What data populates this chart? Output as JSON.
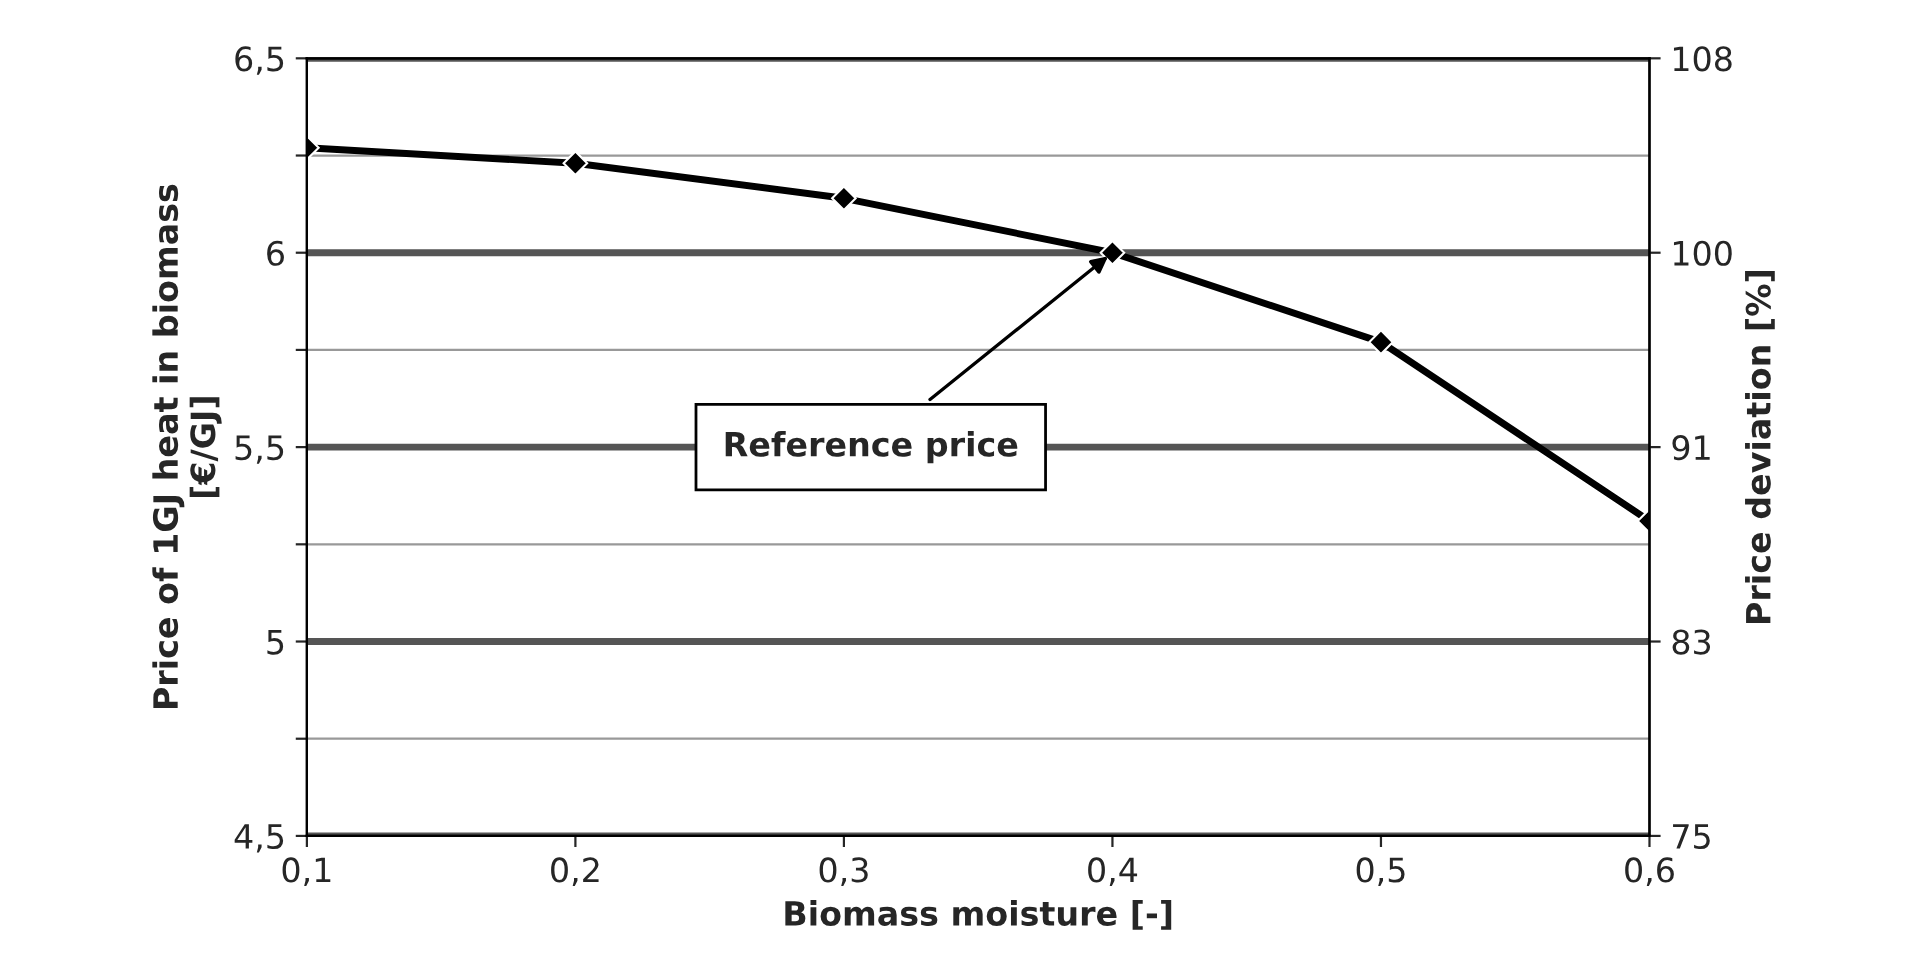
{
  "chart_data": {
    "type": "line",
    "x": [
      0.1,
      0.2,
      0.3,
      0.4,
      0.5,
      0.6
    ],
    "series": [
      {
        "color": "#000000",
        "values": [
          6.27,
          6.23,
          6.14,
          6.0,
          5.77,
          5.31
        ]
      }
    ],
    "marker": "diamond",
    "line_style": "solid",
    "xlabel": "Biomass moisture [-]",
    "ylabel": "Price of 1GJ heat in biomass\n[€/GJ]",
    "y2label": "Price deviation [%]",
    "xlim": [
      0.1,
      0.6
    ],
    "xticks": [
      {
        "value": 0.1,
        "label": "0,1"
      },
      {
        "value": 0.2,
        "label": "0,2"
      },
      {
        "value": 0.3,
        "label": "0,3"
      },
      {
        "value": 0.4,
        "label": "0,4"
      },
      {
        "value": 0.5,
        "label": "0,5"
      },
      {
        "value": 0.6,
        "label": "0,6"
      }
    ],
    "ylim": [
      4.5,
      6.5
    ],
    "yticks": [
      {
        "value": 4.5,
        "label": "4,5"
      },
      {
        "value": 4.75,
        "label": null
      },
      {
        "value": 5,
        "label": "5"
      },
      {
        "value": 5.25,
        "label": null
      },
      {
        "value": 5.5,
        "label": "5,5"
      },
      {
        "value": 5.75,
        "label": null
      },
      {
        "value": 6,
        "label": "6"
      },
      {
        "value": 6.25,
        "label": null
      },
      {
        "value": 6.5,
        "label": "6,5"
      }
    ],
    "y2lim": [
      75,
      108
    ],
    "y2ticks": [
      75,
      {
        "value": 83.25,
        "label": "83"
      },
      {
        "value": 91.5,
        "label": "91"
      },
      {
        "value": 99.75,
        "label": "100"
      },
      108
    ],
    "grid": "y",
    "annotations": [
      {
        "text": "Reference price",
        "x": 0.4,
        "y": 6.0
      }
    ]
  }
}
